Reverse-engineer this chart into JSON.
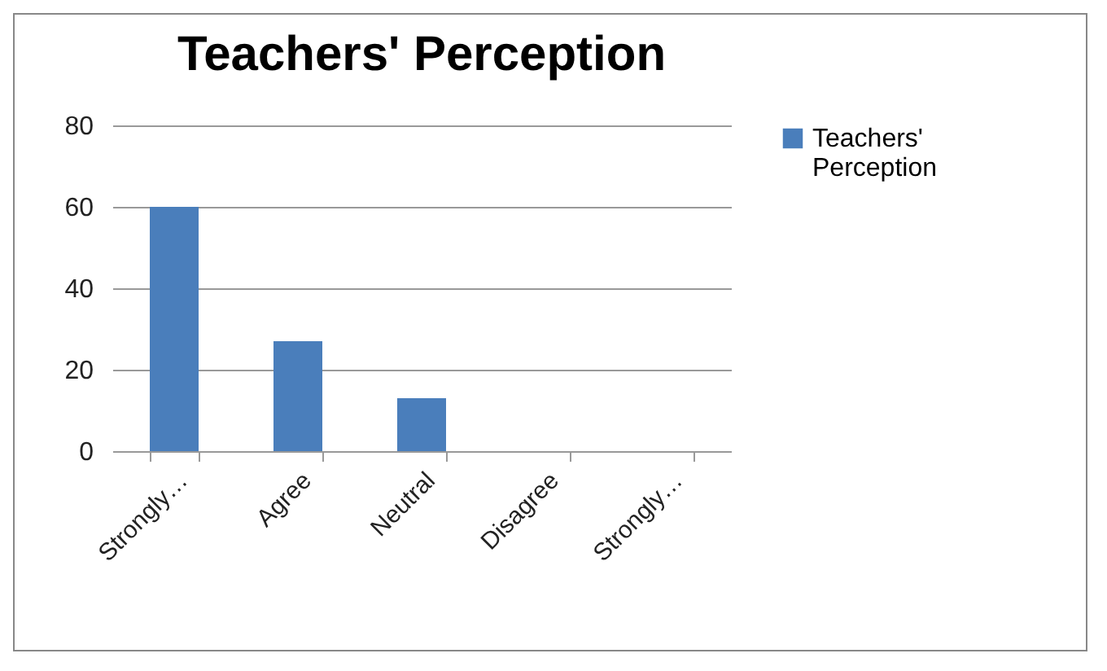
{
  "chart_data": {
    "type": "bar",
    "title": "Teachers' Perception",
    "categories": [
      "Strongly…",
      "Agree",
      "Neutral",
      "Disagree",
      "Strongly…"
    ],
    "series": [
      {
        "name": "Teachers' Perception",
        "color": "#4a7ebb",
        "values": [
          60,
          27,
          13,
          0,
          0
        ]
      }
    ],
    "ylim": [
      0,
      80
    ],
    "yticks": [
      0,
      20,
      40,
      60,
      80
    ],
    "grid": "y",
    "legend": "right"
  }
}
